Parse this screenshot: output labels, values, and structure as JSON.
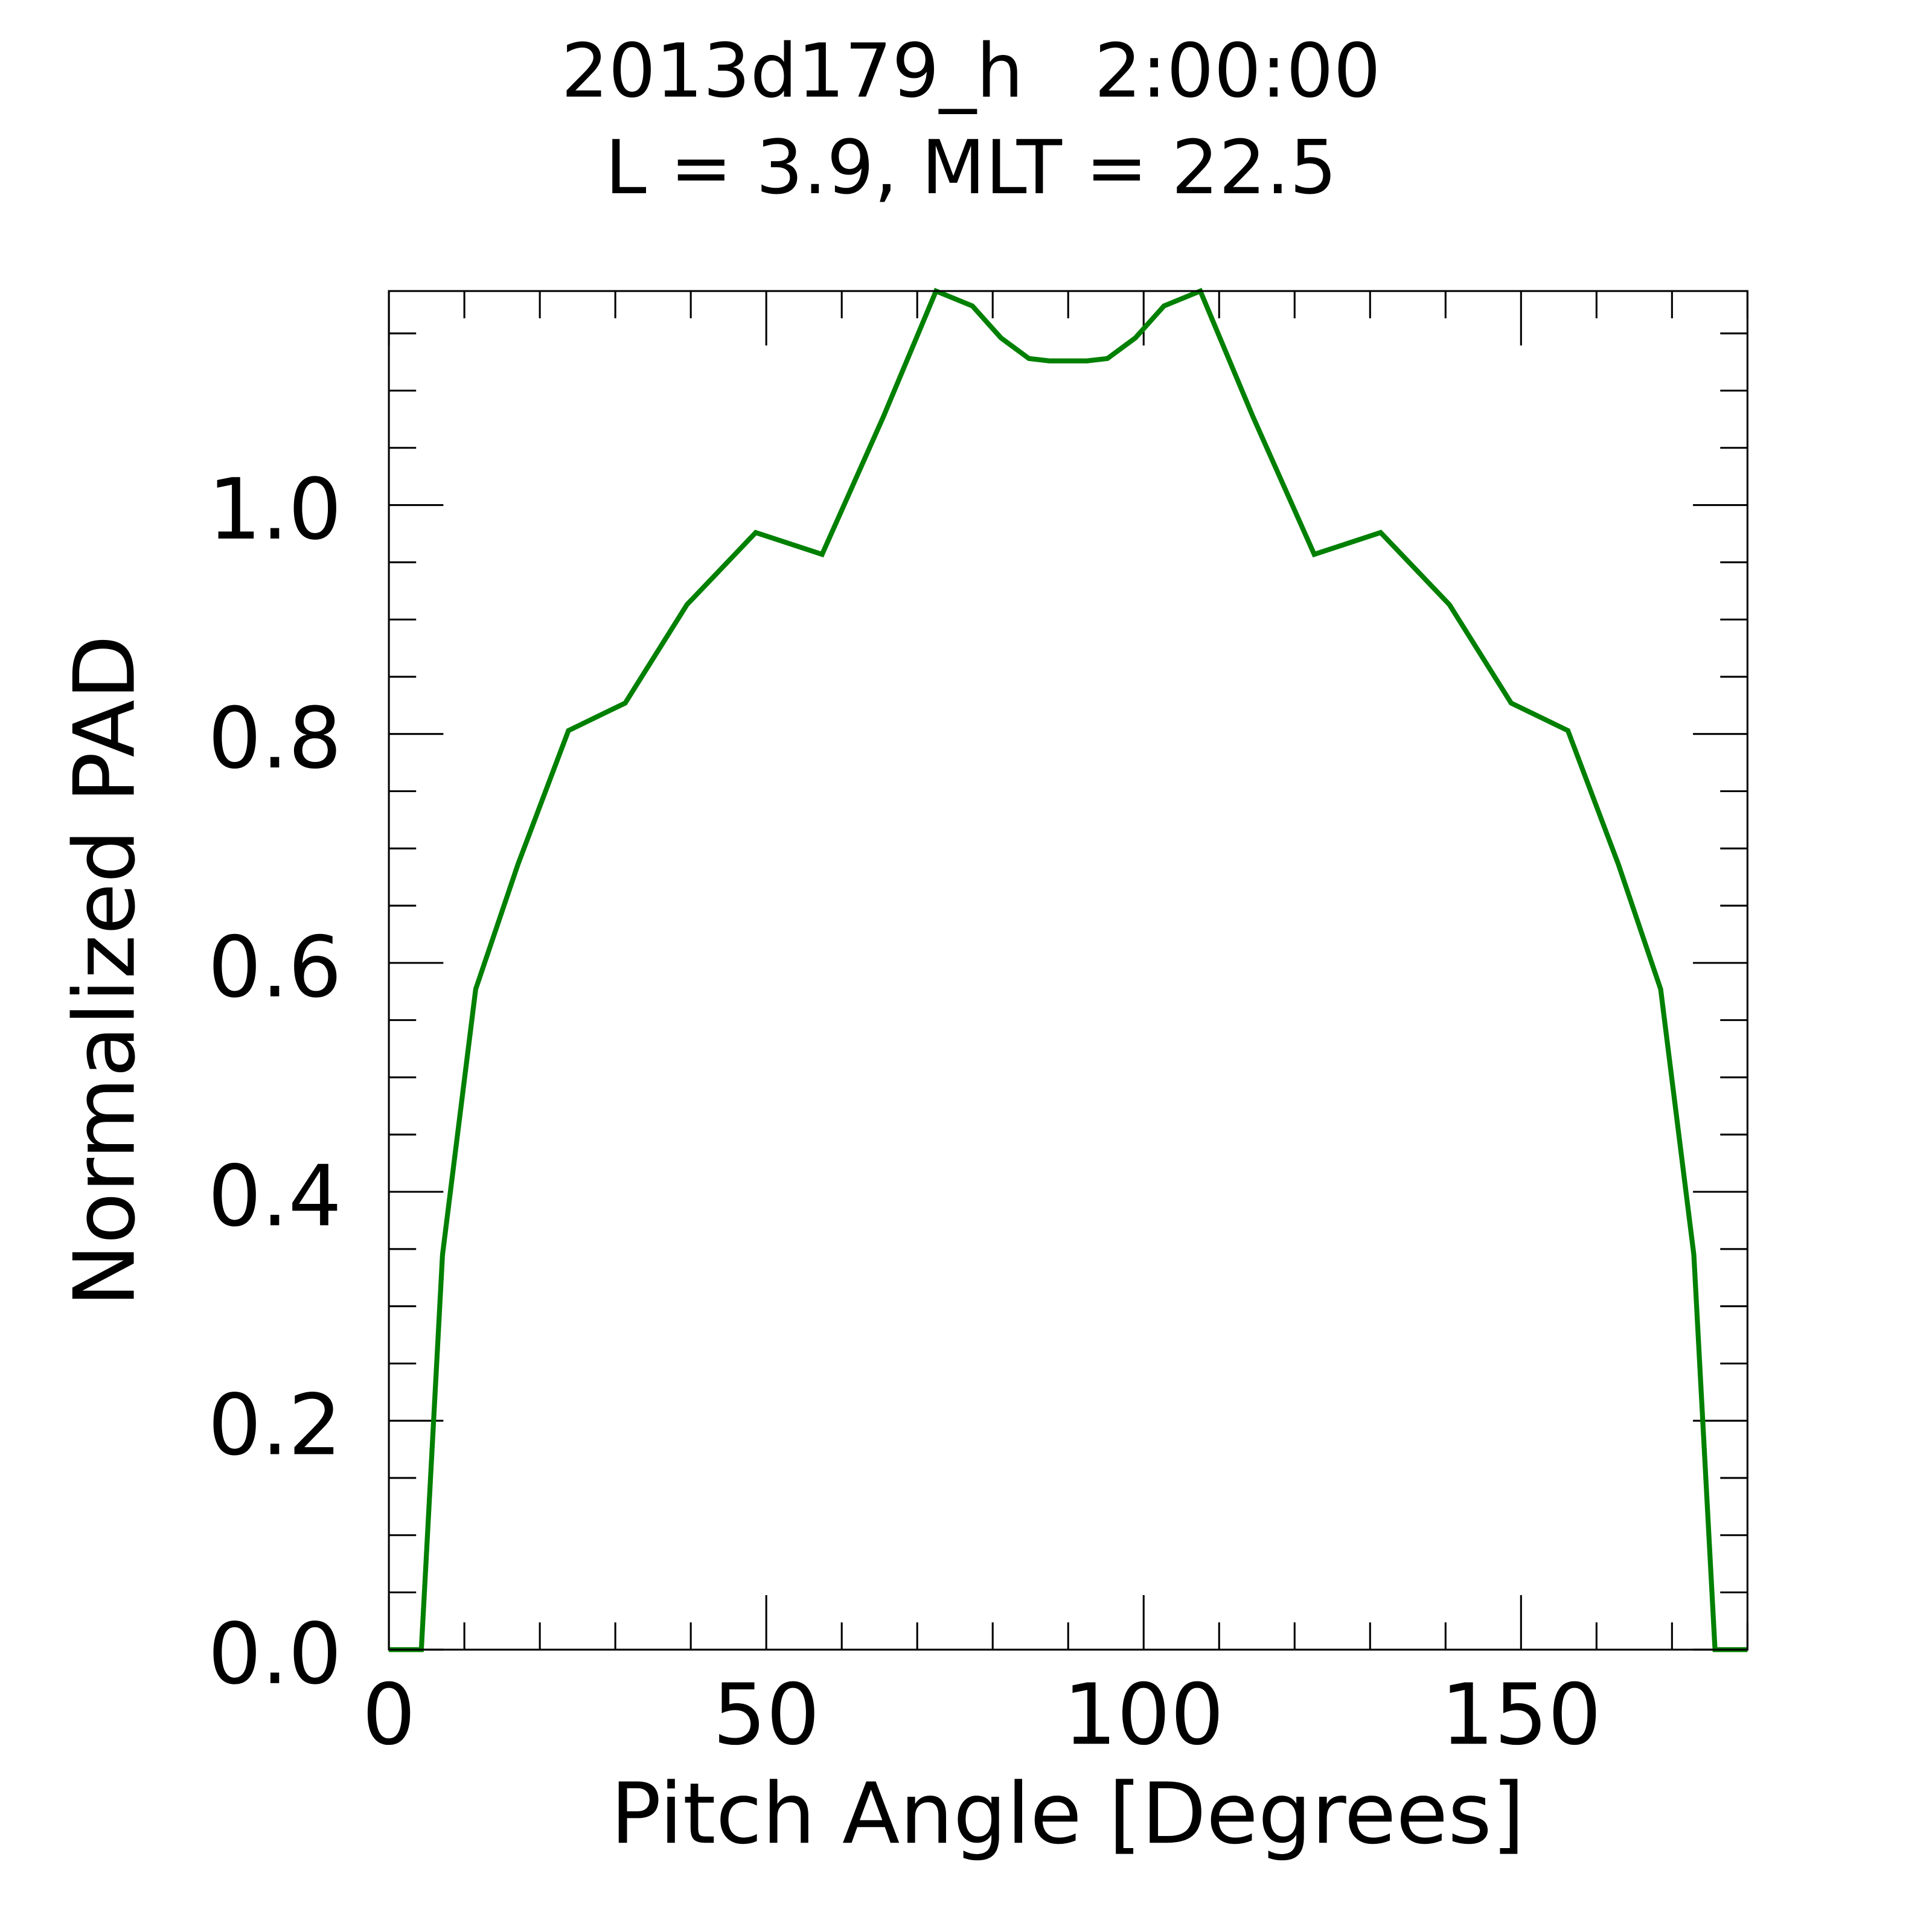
{
  "chart_data": {
    "type": "line",
    "title": "2013d179_h   2:00:00",
    "subtitle": "L = 3.9, MLT = 22.5",
    "xlabel": "Pitch Angle [Degrees]",
    "ylabel": "Normalized PAD",
    "xlim": [
      0,
      180
    ],
    "ylim": [
      0,
      1.187
    ],
    "xticks": [
      0,
      50,
      100,
      150
    ],
    "xtick_labels": [
      "0",
      "50",
      "100",
      "150"
    ],
    "yticks": [
      0,
      0.2,
      0.4,
      0.6,
      0.8,
      1.0
    ],
    "ytick_labels": [
      "0.0",
      "0.2",
      "0.4",
      "0.6",
      "0.8",
      "1.0"
    ],
    "x_minor_step": 10,
    "y_minor_step": 0.05,
    "grid": false,
    "series": [
      {
        "name": "PAD",
        "color": "#008000",
        "x": [
          0,
          4.3,
          7.1,
          11.5,
          17.1,
          23.8,
          31.3,
          39.5,
          48.6,
          57.4,
          65.5,
          72.5,
          77.3,
          81.1,
          84.8,
          87.5,
          92.5,
          95.2,
          98.9,
          102.7,
          107.5,
          114.5,
          122.6,
          131.4,
          140.5,
          148.7,
          156.2,
          162.9,
          168.5,
          172.9,
          175.7,
          180
        ],
        "y": [
          0,
          0,
          0.345,
          0.577,
          0.686,
          0.803,
          0.827,
          0.913,
          0.976,
          0.957,
          1.077,
          1.187,
          1.174,
          1.146,
          1.128,
          1.126,
          1.126,
          1.128,
          1.146,
          1.174,
          1.187,
          1.077,
          0.957,
          0.976,
          0.913,
          0.827,
          0.803,
          0.686,
          0.577,
          0.345,
          0,
          0
        ]
      }
    ]
  }
}
